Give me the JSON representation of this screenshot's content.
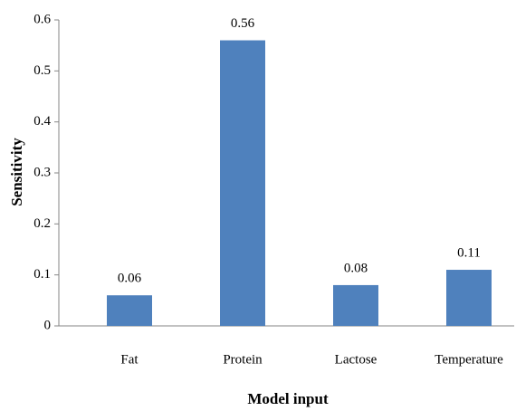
{
  "chart_data": {
    "type": "bar",
    "x_label": "Model input",
    "y_label": "Sensitivity",
    "categories": [
      "Fat",
      "Protein",
      "Lactose",
      "Temperature"
    ],
    "values": [
      0.06,
      0.56,
      0.08,
      0.11
    ],
    "color": "#4f81bd",
    "ylim": [
      0,
      0.6
    ],
    "yticks": [
      0,
      0.1,
      0.2,
      0.3,
      0.4,
      0.5,
      0.6
    ],
    "grid": false
  }
}
